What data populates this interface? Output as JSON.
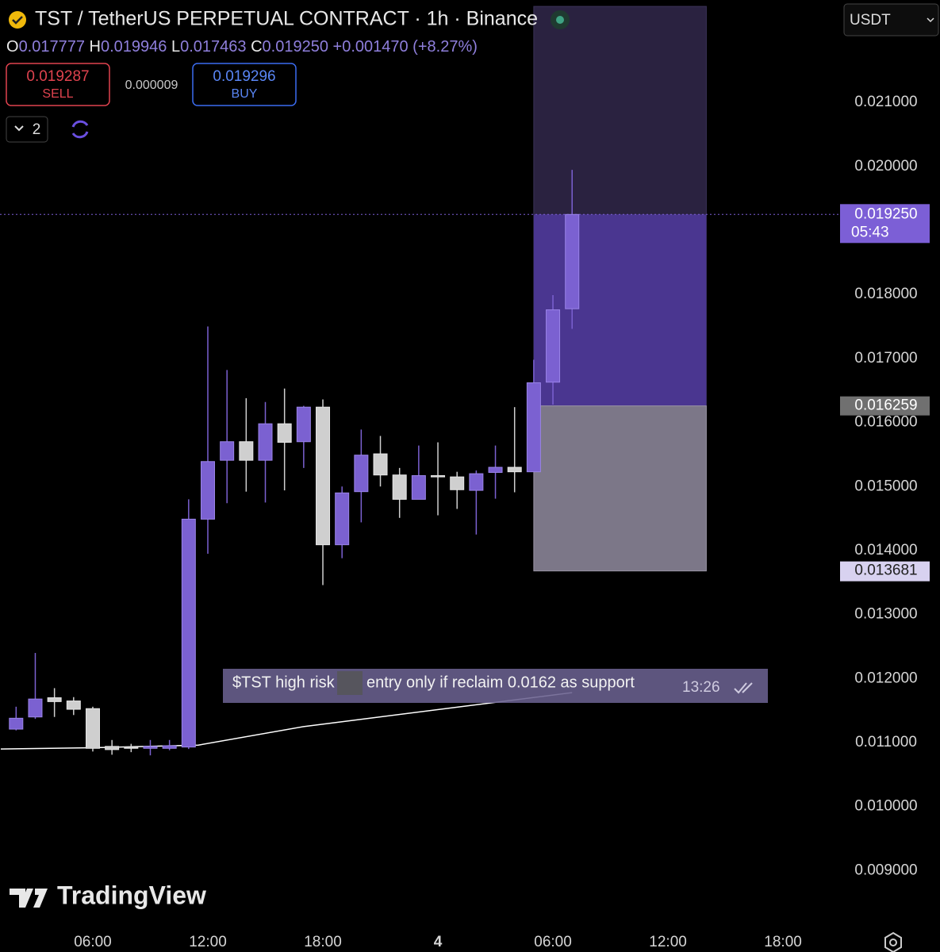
{
  "header": {
    "title": "TST / TetherUS PERPETUAL CONTRACT · 1h · Binance",
    "ohlc": [
      {
        "key": "O",
        "value": "0.017777"
      },
      {
        "key": "H",
        "value": "0.019946"
      },
      {
        "key": "L",
        "value": "0.017463"
      },
      {
        "key": "C",
        "value": "0.019250"
      }
    ],
    "change": "+0.001470 (+8.27%)",
    "sell": {
      "price": "0.019287",
      "label": "SELL"
    },
    "spread": "0.000009",
    "buy": {
      "price": "0.019296",
      "label": "BUY"
    },
    "indicators_count": "2",
    "currency": "USDT"
  },
  "annotation": {
    "text_1": "$TST high risk",
    "text_2": "entry only if reclaim 0.0162 as support",
    "time": "13:26"
  },
  "watermark": "TradingView",
  "chart_data": {
    "type": "candlestick",
    "x": [
      2,
      3,
      4,
      5,
      6,
      7,
      8,
      9,
      10,
      11,
      12,
      13,
      14,
      15,
      16,
      17,
      18,
      19,
      20,
      21,
      22,
      23,
      24,
      25,
      26,
      27,
      28,
      29,
      30,
      31
    ],
    "open": [
      0.01121,
      0.0114,
      0.0117,
      0.01165,
      0.01153,
      0.01094,
      0.01093,
      0.01091,
      0.01091,
      0.01093,
      0.01449,
      0.01541,
      0.0157,
      0.01541,
      0.01598,
      0.0157,
      0.01624,
      0.01409,
      0.01492,
      0.01551,
      0.01518,
      0.0148,
      0.01517,
      0.01515,
      0.01494,
      0.01522,
      0.0153,
      0.01523,
      0.01663,
      0.017777
    ],
    "high": [
      0.01156,
      0.0124,
      0.01185,
      0.01171,
      0.01156,
      0.01104,
      0.01098,
      0.01104,
      0.01104,
      0.0148,
      0.0175,
      0.01682,
      0.01638,
      0.01632,
      0.01653,
      0.01626,
      0.01636,
      0.015,
      0.01589,
      0.01579,
      0.01529,
      0.01564,
      0.01569,
      0.01523,
      0.01525,
      0.01564,
      0.01624,
      0.01698,
      0.01799,
      0.019946
    ],
    "low": [
      0.01119,
      0.01137,
      0.0114,
      0.01143,
      0.01086,
      0.01081,
      0.01085,
      0.0108,
      0.01088,
      0.0109,
      0.01395,
      0.01474,
      0.01492,
      0.01475,
      0.01494,
      0.01529,
      0.01346,
      0.01388,
      0.01444,
      0.015,
      0.01451,
      0.0148,
      0.01455,
      0.01465,
      0.01425,
      0.01481,
      0.01491,
      0.01523,
      0.01628,
      0.017463
    ],
    "close": [
      0.01138,
      0.01168,
      0.01164,
      0.01152,
      0.01091,
      0.01089,
      0.01091,
      0.01094,
      0.01095,
      0.01449,
      0.01539,
      0.0157,
      0.01541,
      0.01598,
      0.01569,
      0.01624,
      0.01409,
      0.0149,
      0.01549,
      0.01518,
      0.0148,
      0.01517,
      0.01515,
      0.01495,
      0.0152,
      0.0153,
      0.01523,
      0.01662,
      0.01776,
      0.01925
    ],
    "up_color": "#7b61d1",
    "down_color": "#cfcfcf",
    "ma": {
      "color": "#ffffff",
      "x": [
        1.2,
        6,
        11.5,
        17,
        31
      ],
      "values": [
        0.0109,
        0.01092,
        0.01096,
        0.01125,
        0.01178
      ]
    },
    "position": {
      "x": [
        29,
        38
      ],
      "target": 0.0225,
      "entry": {
        "value": 0.016259,
        "label": "0.016259"
      },
      "stop": {
        "value": 0.013681,
        "label": "0.013681"
      }
    },
    "last_price": {
      "value": 0.01925,
      "label": "0.019250",
      "countdown": "05:43"
    },
    "xlim": [
      1.16,
      44.81
    ],
    "xticks": [
      {
        "value": 6,
        "label": "06:00"
      },
      {
        "value": 12,
        "label": "12:00"
      },
      {
        "value": 18,
        "label": "18:00"
      },
      {
        "value": 24,
        "label": "4"
      },
      {
        "value": 30,
        "label": "06:00"
      },
      {
        "value": 36,
        "label": "12:00"
      },
      {
        "value": 42,
        "label": "18:00"
      }
    ],
    "ylim": [
      0.0081,
      0.0226
    ],
    "yticks": [
      {
        "value": 0.009,
        "label": "0.009000"
      },
      {
        "value": 0.01,
        "label": "0.010000"
      },
      {
        "value": 0.011,
        "label": "0.011000"
      },
      {
        "value": 0.012,
        "label": "0.012000"
      },
      {
        "value": 0.013,
        "label": "0.013000"
      },
      {
        "value": 0.014,
        "label": "0.014000"
      },
      {
        "value": 0.015,
        "label": "0.015000"
      },
      {
        "value": 0.016,
        "label": "0.016000"
      },
      {
        "value": 0.017,
        "label": "0.017000"
      },
      {
        "value": 0.018,
        "label": "0.018000"
      },
      {
        "value": 0.02,
        "label": "0.020000"
      },
      {
        "value": 0.021,
        "label": "0.021000"
      }
    ]
  }
}
